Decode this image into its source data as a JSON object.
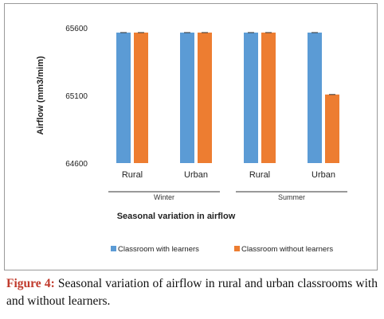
{
  "chart_data": {
    "type": "bar",
    "categories": [
      "Rural",
      "Urban",
      "Rural",
      "Urban"
    ],
    "groups": [
      {
        "label": "Winter",
        "categories": [
          "Rural",
          "Urban"
        ]
      },
      {
        "label": "Summer",
        "categories": [
          "Rural",
          "Urban"
        ]
      }
    ],
    "series": [
      {
        "name": "Classroom with learners",
        "values": [
          65565,
          65565,
          65565,
          65565
        ],
        "color": "#5b9bd5"
      },
      {
        "name": "Classroom without learners",
        "values": [
          65565,
          65565,
          65565,
          65107
        ],
        "color": "#ed7d31"
      }
    ],
    "ylabel": "Airflow  (mm3/mim)",
    "xlabel": "Seasonal variation in airflow",
    "ylim": [
      64600,
      65600
    ],
    "yticks": [
      64600,
      65100,
      65600
    ],
    "legend_position": "bottom",
    "grid": false,
    "error_bars": true
  },
  "caption": {
    "label": "Figure 4:",
    "text": " Seasonal variation of airflow in rural and urban classrooms with and without learners."
  }
}
